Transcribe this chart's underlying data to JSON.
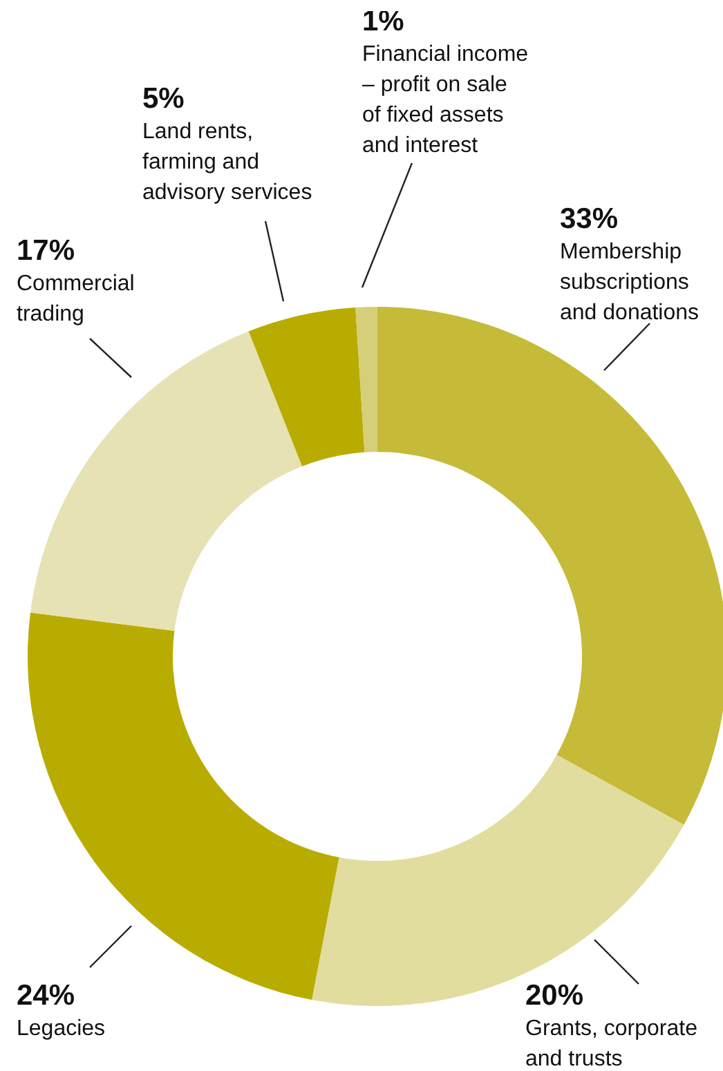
{
  "chart_data": {
    "type": "donut",
    "categories": [
      "Membership\nsubscriptions\nand donations",
      "Grants, corporate\nand trusts",
      "Legacies",
      "Commercial\ntrading",
      "Land rents,\nfarming and\nadvisory services",
      "Financial income\n– profit on sale\nof fixed assets\nand interest"
    ],
    "values": [
      33,
      20,
      24,
      17,
      5,
      1
    ],
    "value_labels": [
      "33%",
      "20%",
      "24%",
      "17%",
      "5%",
      "1%"
    ],
    "colors": [
      "#c6bb38",
      "#e1dd9e",
      "#b9ac00",
      "#e6e2b4",
      "#b9ac00",
      "#d4cf78"
    ],
    "legend": false
  }
}
